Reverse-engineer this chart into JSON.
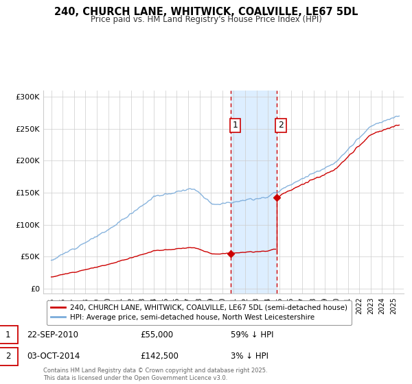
{
  "title_line1": "240, CHURCH LANE, WHITWICK, COALVILLE, LE67 5DL",
  "title_line2": "Price paid vs. HM Land Registry's House Price Index (HPI)",
  "background_color": "#ffffff",
  "plot_bg_color": "#ffffff",
  "grid_color": "#cccccc",
  "sale1_date": "22-SEP-2010",
  "sale1_price": 55000,
  "sale1_hpi_pct": "59% ↓ HPI",
  "sale2_date": "03-OCT-2014",
  "sale2_price": 142500,
  "sale2_hpi_pct": "3% ↓ HPI",
  "legend_property": "240, CHURCH LANE, WHITWICK, COALVILLE, LE67 5DL (semi-detached house)",
  "legend_hpi": "HPI: Average price, semi-detached house, North West Leicestershire",
  "footer": "Contains HM Land Registry data © Crown copyright and database right 2025.\nThis data is licensed under the Open Government Licence v3.0.",
  "property_color": "#cc0000",
  "hpi_color": "#7aabda",
  "vline_color": "#cc0000",
  "shade_color": "#ddeeff",
  "ylim_max": 310000,
  "ylim_min": -8000,
  "sale1_year": 2010.72,
  "sale2_year": 2014.75,
  "xmin": 1994.3,
  "xmax": 2025.9
}
